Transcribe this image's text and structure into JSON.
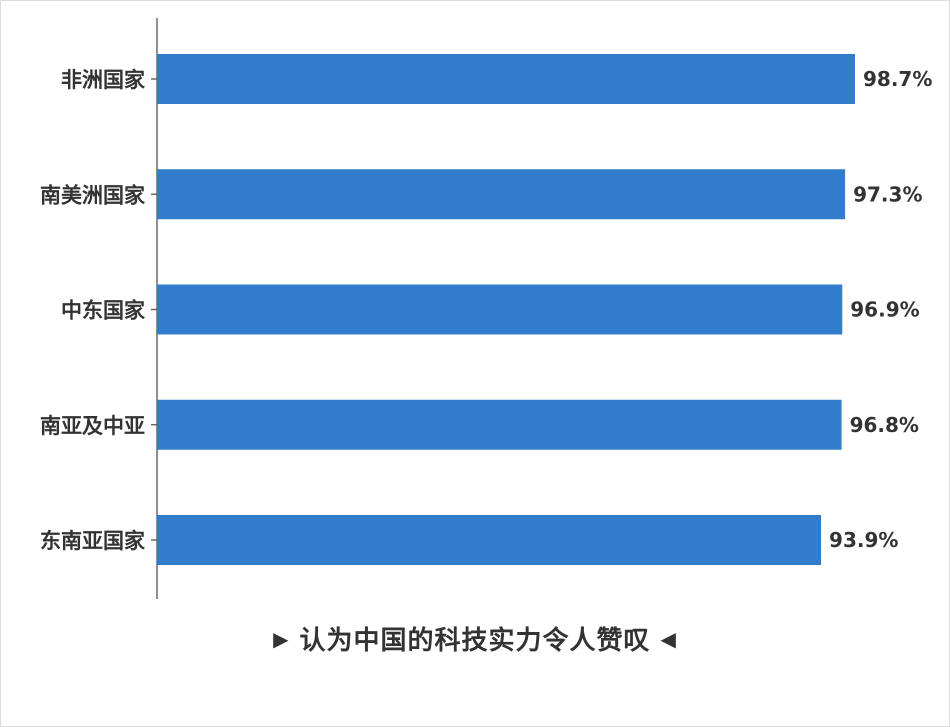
{
  "chart_data": {
    "type": "bar",
    "orientation": "horizontal",
    "categories": [
      "非洲国家",
      "南美洲国家",
      "中东国家",
      "南亚及中亚",
      "东南亚国家"
    ],
    "values": [
      98.7,
      97.3,
      96.9,
      96.8,
      93.9
    ],
    "value_labels": [
      "98.7%",
      "97.3%",
      "96.9%",
      "96.8%",
      "93.9%"
    ],
    "unit": "%",
    "title": "",
    "caption": "认为中国的科技实力令人赞叹",
    "xlim": [
      0,
      100
    ],
    "grid": false,
    "legend": "none",
    "bar_color": "#317dcb"
  }
}
